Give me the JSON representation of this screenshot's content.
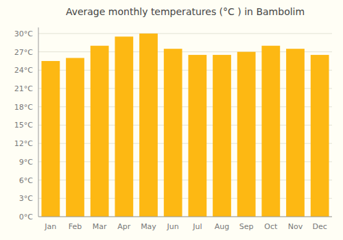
{
  "chart_data": {
    "type": "bar",
    "title": "Average monthly temperatures (°C ) in Bambolim",
    "categories": [
      "Jan",
      "Feb",
      "Mar",
      "Apr",
      "May",
      "Jun",
      "Jul",
      "Aug",
      "Sep",
      "Oct",
      "Nov",
      "Dec"
    ],
    "values": [
      25.5,
      26.0,
      28.0,
      29.5,
      30.0,
      27.5,
      26.5,
      26.5,
      27.0,
      28.0,
      27.5,
      26.5
    ],
    "color": "#FDB813",
    "ylim": [
      0,
      31
    ],
    "yticks": [
      {
        "value": 0,
        "label": "0°C"
      },
      {
        "value": 3,
        "label": "3°C"
      },
      {
        "value": 6,
        "label": "6°C"
      },
      {
        "value": 9,
        "label": "9°C"
      },
      {
        "value": 12,
        "label": "12°C"
      },
      {
        "value": 15,
        "label": "15°C"
      },
      {
        "value": 18,
        "label": "18°C"
      },
      {
        "value": 21,
        "label": "21°C"
      },
      {
        "value": 24,
        "label": "24°C"
      },
      {
        "value": 27,
        "label": "27°C"
      },
      {
        "value": 30,
        "label": "30°C"
      }
    ],
    "grid": true
  }
}
